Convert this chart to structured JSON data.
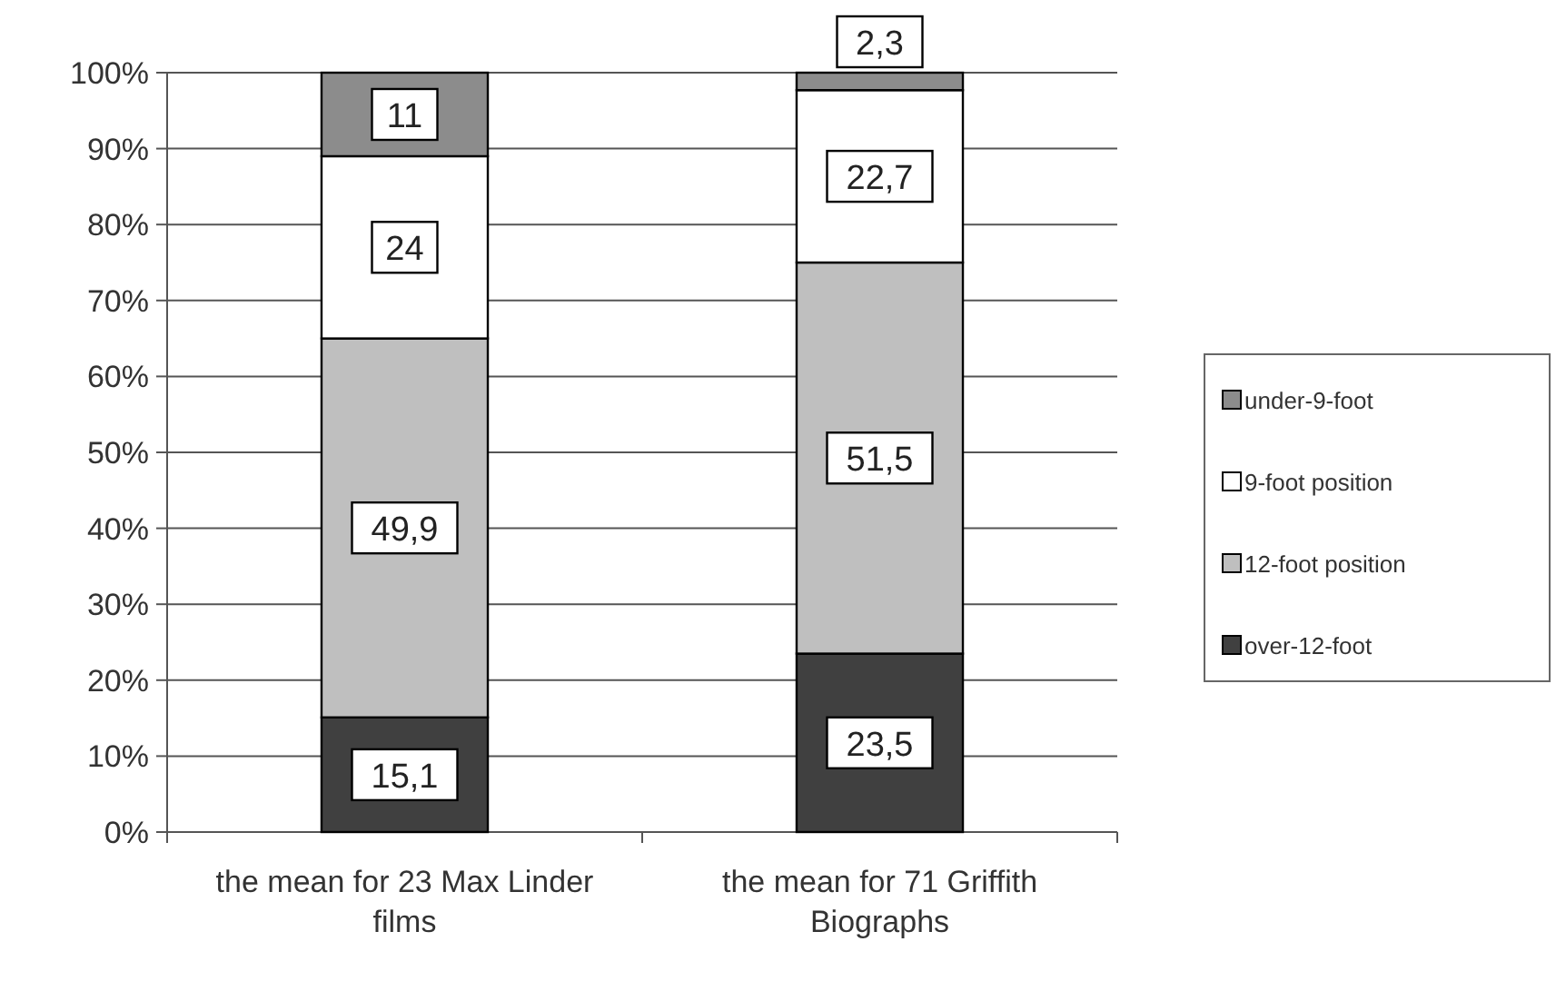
{
  "chart_data": {
    "type": "bar",
    "stacked": true,
    "categories": [
      "the mean for 23 Max Linder films",
      "the mean for 71 Griffith Biographs"
    ],
    "series": [
      {
        "name": "over-12-foot",
        "color": "#404040",
        "values": [
          15.1,
          23.5
        ],
        "value_labels": [
          "15,1",
          "23,5"
        ]
      },
      {
        "name": "12-foot position",
        "color": "#bfbfbf",
        "values": [
          49.9,
          51.5
        ],
        "value_labels": [
          "49,9",
          "51,5"
        ]
      },
      {
        "name": "9-foot position",
        "color": "#ffffff",
        "values": [
          24,
          22.7
        ],
        "value_labels": [
          "24",
          "22,7"
        ]
      },
      {
        "name": "under-9-foot",
        "color": "#8c8c8c",
        "values": [
          11,
          2.3
        ],
        "value_labels": [
          "11",
          "2,3"
        ]
      }
    ],
    "ylim": [
      0,
      100
    ],
    "yticks": [
      {
        "value": 0,
        "label": "0%"
      },
      {
        "value": 10,
        "label": "10%"
      },
      {
        "value": 20,
        "label": "20%"
      },
      {
        "value": 30,
        "label": "30%"
      },
      {
        "value": 40,
        "label": "40%"
      },
      {
        "value": 50,
        "label": "50%"
      },
      {
        "value": 60,
        "label": "60%"
      },
      {
        "value": 70,
        "label": "70%"
      },
      {
        "value": 80,
        "label": "80%"
      },
      {
        "value": 90,
        "label": "90%"
      },
      {
        "value": 100,
        "label": "100%"
      }
    ],
    "grid": "y",
    "legend": "right"
  }
}
